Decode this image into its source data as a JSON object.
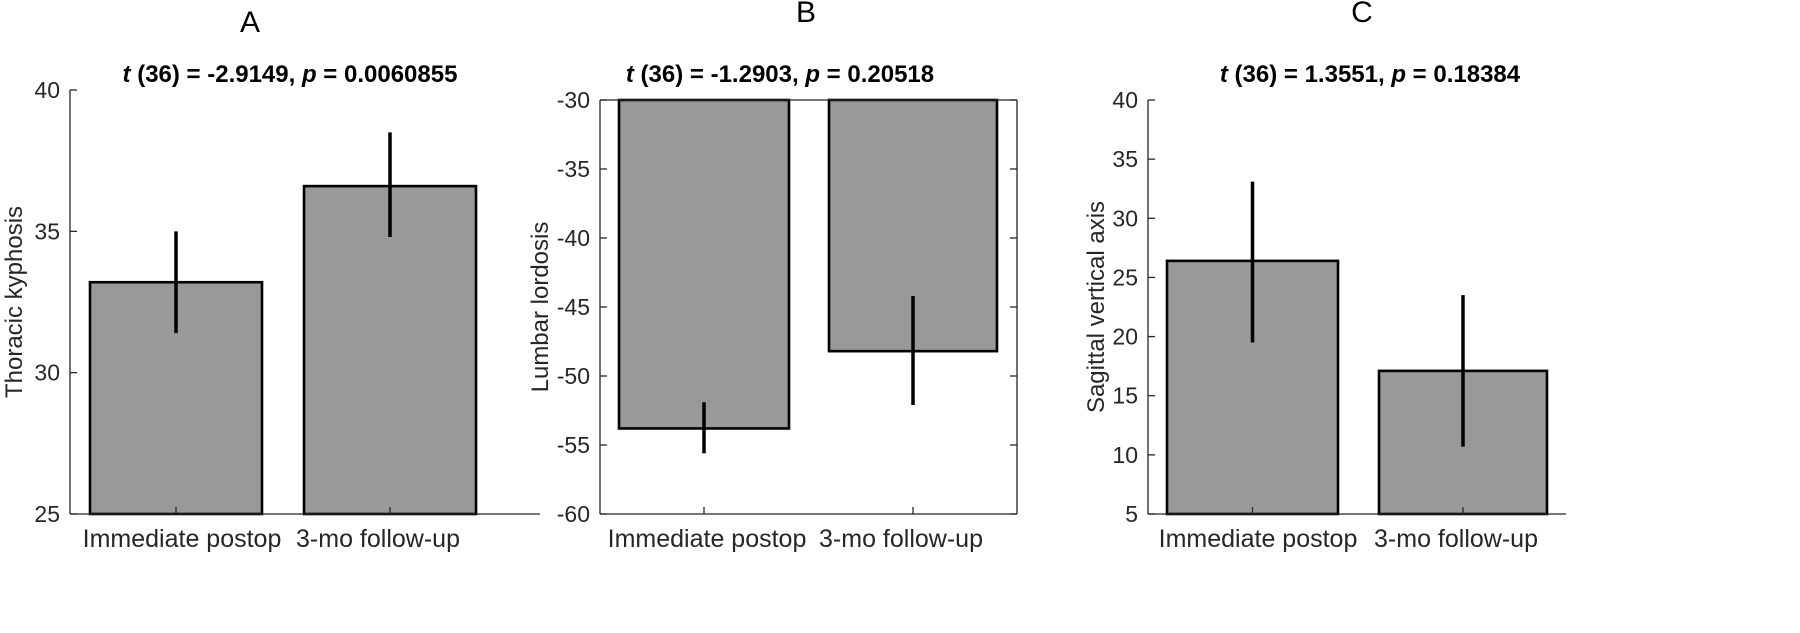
{
  "colors": {
    "bar_fill": "#999999",
    "bar_edge": "#000000",
    "axis": "#262626"
  },
  "chart_data": [
    {
      "type": "bar",
      "panel": "A",
      "stat": {
        "t_symbol": "t",
        "t_rest": " (36) =  -2.9149, ",
        "p_symbol": "p",
        "p_rest": " = 0.0060855"
      },
      "xlabel": "",
      "ylabel": "Thoracic kyphosis",
      "categories": [
        "Immediate postop",
        "3-mo follow-up"
      ],
      "values": [
        33.2,
        36.6
      ],
      "errors": [
        [
          31.4,
          35.0
        ],
        [
          34.8,
          38.5
        ]
      ],
      "ylim": [
        25,
        40
      ],
      "yticks": [
        25,
        30,
        35,
        40
      ],
      "box": false,
      "grid": false
    },
    {
      "type": "bar",
      "panel": "B",
      "stat": {
        "t_symbol": "t",
        "t_rest": " (36) = -1.2903, ",
        "p_symbol": "p",
        "p_rest": " = 0.20518"
      },
      "xlabel": "",
      "ylabel": "Lumbar lordosis",
      "categories": [
        "Immediate postop",
        "3-mo follow-up"
      ],
      "values": [
        -53.8,
        -48.2
      ],
      "errors": [
        [
          -55.6,
          -51.9
        ],
        [
          -52.1,
          -44.2
        ]
      ],
      "ylim": [
        -60,
        -30
      ],
      "yticks": [
        -60,
        -55,
        -50,
        -45,
        -40,
        -35,
        -30
      ],
      "box": true,
      "grid": false
    },
    {
      "type": "bar",
      "panel": "C",
      "stat": {
        "t_symbol": "t",
        "t_rest": " (36) = 1.3551, ",
        "p_symbol": "p",
        "p_rest": " = 0.18384"
      },
      "xlabel": "",
      "ylabel": "Sagittal vertical axis",
      "categories": [
        "Immediate postop",
        "3-mo follow-up"
      ],
      "values": [
        26.4,
        17.1
      ],
      "errors": [
        [
          19.5,
          33.1
        ],
        [
          10.7,
          23.5
        ]
      ],
      "ylim": [
        5,
        40
      ],
      "yticks": [
        5,
        10,
        15,
        20,
        25,
        30,
        35,
        40
      ],
      "box": false,
      "grid": false
    }
  ]
}
